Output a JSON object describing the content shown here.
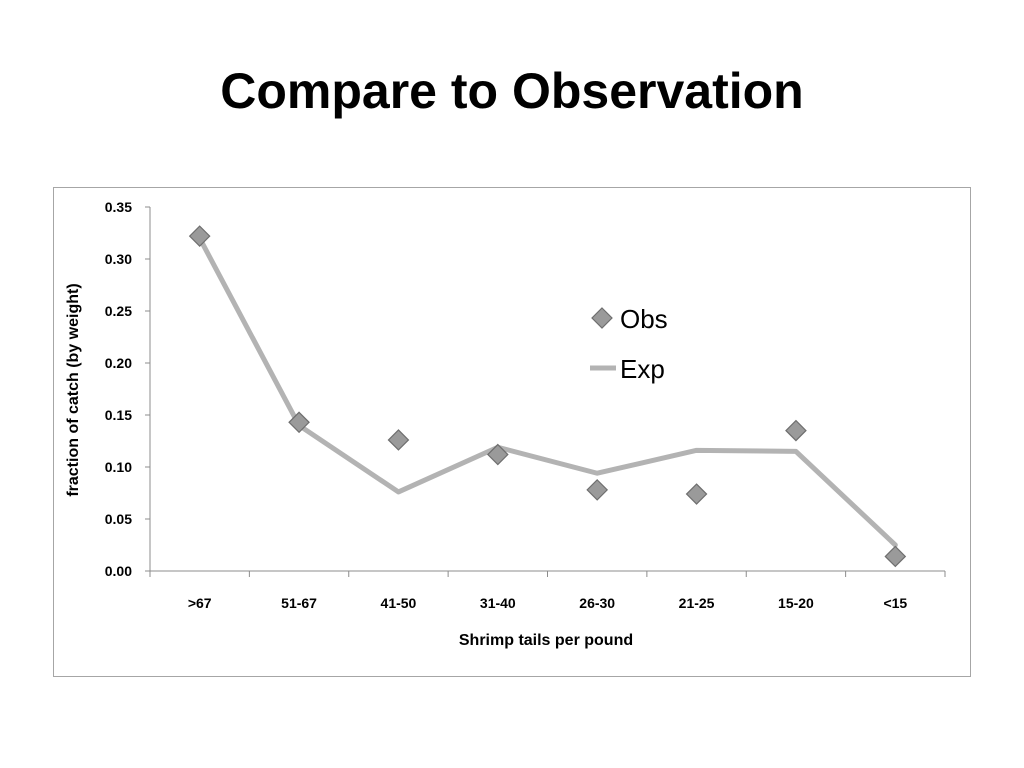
{
  "slide": {
    "title": "Compare to Observation"
  },
  "chart_data": {
    "type": "line",
    "title": "",
    "xlabel": "Shrimp tails per pound",
    "ylabel": "fraction of catch (by weight)",
    "categories": [
      ">67",
      "51-67",
      "41-50",
      "31-40",
      "26-30",
      "21-25",
      "15-20",
      "<15"
    ],
    "ylim": [
      0,
      0.35
    ],
    "yticks": [
      "0.00",
      "0.05",
      "0.10",
      "0.15",
      "0.20",
      "0.25",
      "0.30",
      "0.35"
    ],
    "grid": false,
    "legend_position": "upper-right-inside",
    "series": [
      {
        "name": "Obs",
        "kind": "scatter",
        "marker": "diamond",
        "color": "#9a9a9a",
        "values": [
          0.322,
          0.143,
          0.126,
          0.112,
          0.078,
          0.074,
          0.135,
          0.014
        ]
      },
      {
        "name": "Exp",
        "kind": "line",
        "color": "#b3b3b3",
        "values": [
          0.32,
          0.14,
          0.076,
          0.119,
          0.094,
          0.116,
          0.115,
          0.025
        ]
      }
    ]
  }
}
